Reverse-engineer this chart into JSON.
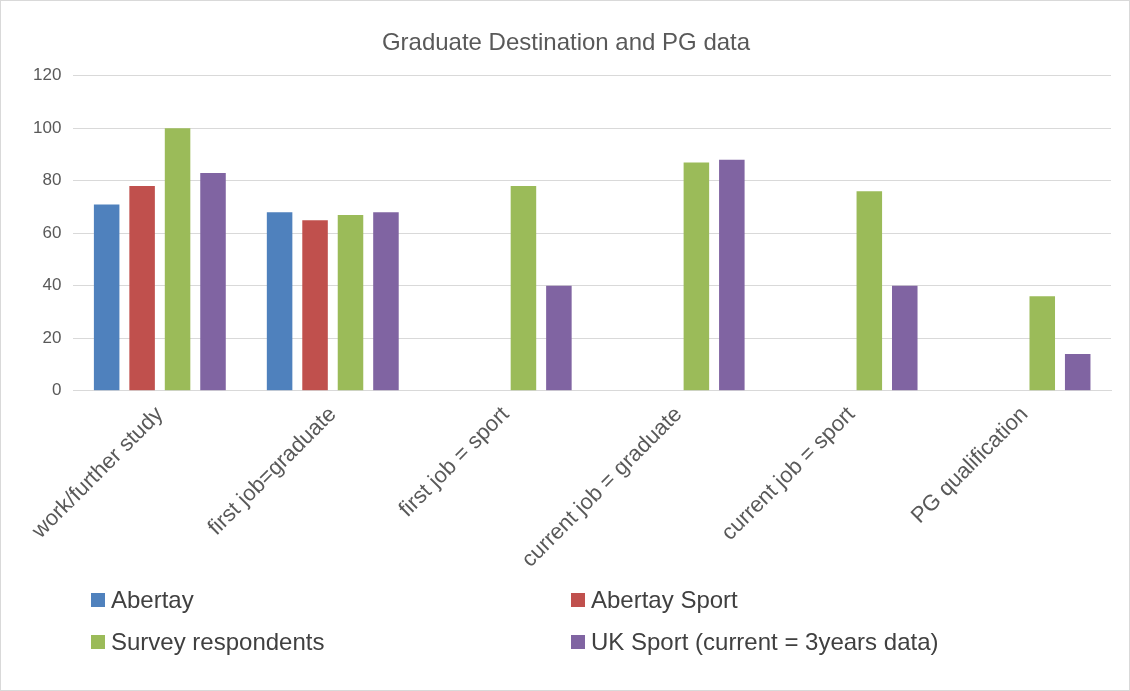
{
  "chart_data": {
    "type": "bar",
    "title": "Graduate Destination and PG data",
    "categories": [
      "work/further study",
      "first job=graduate",
      "first job = sport",
      "current job = graduate",
      "current job = sport",
      "PG qualification"
    ],
    "series": [
      {
        "name": "Abertay",
        "color": "#4f81bd",
        "values": [
          71,
          68,
          null,
          null,
          null,
          null
        ]
      },
      {
        "name": "Abertay Sport",
        "color": "#c0504d",
        "values": [
          78,
          65,
          null,
          null,
          null,
          null
        ]
      },
      {
        "name": "Survey respondents",
        "color": "#9bbb59",
        "values": [
          100,
          67,
          78,
          87,
          76,
          36
        ]
      },
      {
        "name": "UK Sport (current = 3years data)",
        "color": "#8064a2",
        "values": [
          83,
          68,
          40,
          88,
          40,
          14
        ]
      }
    ],
    "ylim": [
      0,
      120
    ],
    "yticks": [
      0,
      20,
      40,
      60,
      80,
      100,
      120
    ],
    "grid": "y",
    "legend": "bottom"
  }
}
